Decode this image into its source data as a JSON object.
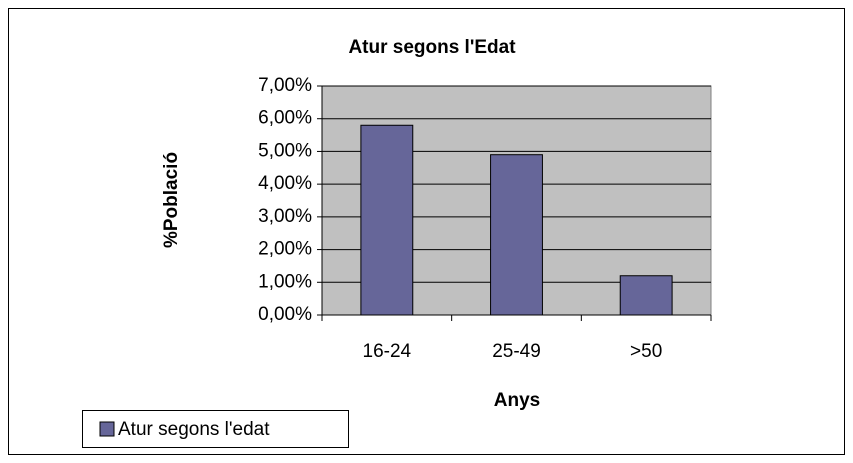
{
  "chart_data": {
    "type": "bar",
    "title": "Atur segons l'Edat",
    "x_label": "Anys",
    "y_label": "%Població",
    "categories": [
      "16-24",
      "25-49",
      ">50"
    ],
    "series": [
      {
        "name": "Atur segons l'edat",
        "color": "#666699",
        "values": [
          5.8,
          4.9,
          1.2
        ]
      }
    ],
    "ylim": [
      0,
      7
    ],
    "yticks": [
      {
        "value": 0,
        "label": "0,00%"
      },
      {
        "value": 1,
        "label": "1,00%"
      },
      {
        "value": 2,
        "label": "2,00%"
      },
      {
        "value": 3,
        "label": "3,00%"
      },
      {
        "value": 4,
        "label": "4,00%"
      },
      {
        "value": 5,
        "label": "5,00%"
      },
      {
        "value": 6,
        "label": "6,00%"
      },
      {
        "value": 7,
        "label": "7,00%"
      }
    ],
    "grid": true,
    "legend": "bottom-left",
    "plot_background": "#c0c0c0"
  }
}
